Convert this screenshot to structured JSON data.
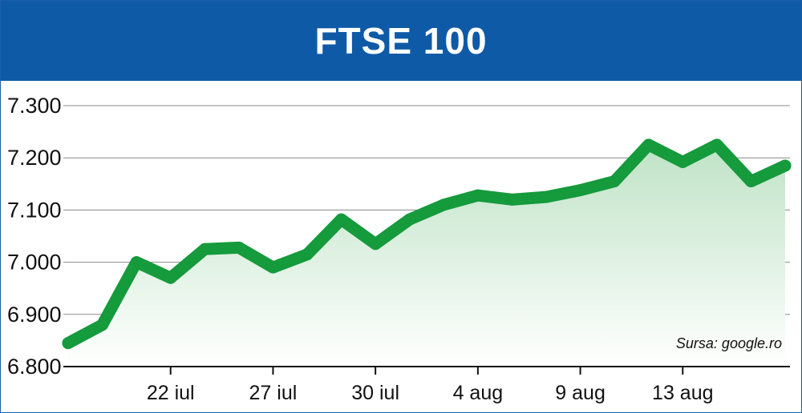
{
  "chart_data": {
    "type": "area",
    "title": "FTSE 100",
    "source": "Sursa: google.ro",
    "xlabel": "",
    "ylabel": "",
    "ylim": [
      6800,
      7300
    ],
    "yticks": [
      6800,
      6900,
      7000,
      7100,
      7200,
      7300
    ],
    "ytick_labels": [
      "6.800",
      "6.900",
      "7.000",
      "7.100",
      "7.200",
      "7.300"
    ],
    "xtick_labels": [
      {
        "index": 3,
        "label": "22 iul"
      },
      {
        "index": 6,
        "label": "27 iul"
      },
      {
        "index": 9,
        "label": "30 iul"
      },
      {
        "index": 12,
        "label": "4 aug"
      },
      {
        "index": 15,
        "label": "9 aug"
      },
      {
        "index": 18,
        "label": "13 aug"
      }
    ],
    "grid": true,
    "colors": {
      "line": "#159a3c",
      "fill_top": "#bfe3c6",
      "fill_bottom": "#ffffff",
      "header": "#0e5aa7",
      "grid": "#8a8a8a"
    },
    "values": [
      6845,
      6880,
      7000,
      6970,
      7025,
      7028,
      6990,
      7015,
      7082,
      7035,
      7082,
      7110,
      7128,
      7120,
      7125,
      7138,
      7155,
      7225,
      7192,
      7225,
      7155,
      7185
    ]
  }
}
